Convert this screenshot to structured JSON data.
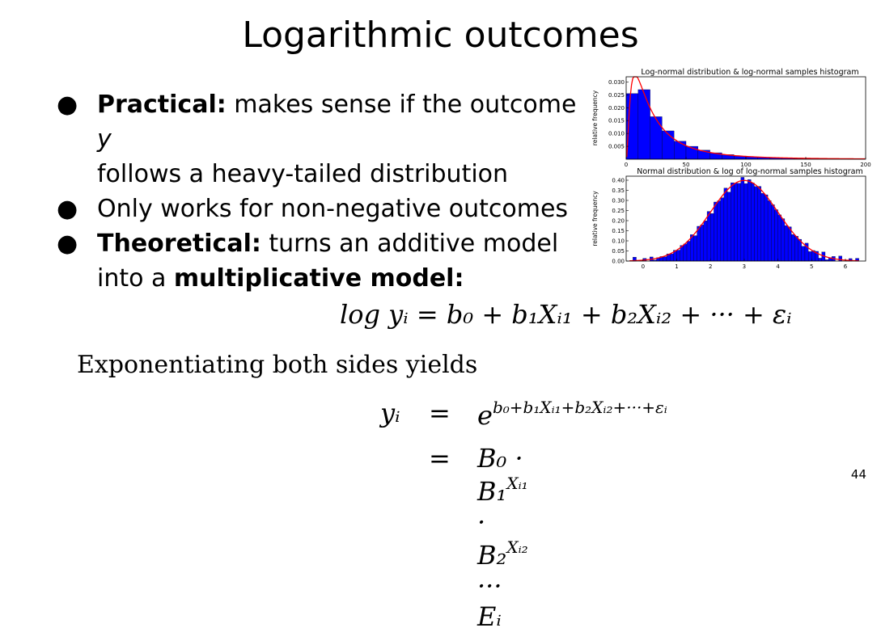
{
  "slide": {
    "title": "Logarithmic outcomes",
    "bullets": [
      {
        "bold": "Practical:",
        "text": " makes sense if the outcome ",
        "var": "y",
        "line2": "follows a heavy-tailed distribution"
      },
      {
        "bold": "",
        "text": "Only works for non-negative outcomes"
      },
      {
        "bold": "Theoretical:",
        "text": " turns an additive model",
        "line2a": "into a ",
        "line2b": "multiplicative model",
        "line2c": ":"
      }
    ],
    "eq1": "log yᵢ = b₀ + b₁Xᵢ₁ + b₂Xᵢ₂ + ··· + εᵢ",
    "exponentiating": "Exponentiating both sides yields",
    "eq2": {
      "lhs": "yᵢ",
      "eq": "=",
      "rhs1_base": "e",
      "rhs1_exp": "b₀+b₁Xᵢ₁+b₂Xᵢ₂+···+εᵢ",
      "rhs2": "B₀ · B₁",
      "rhs2_exp1": "Xᵢ₁",
      "rhs2_mid": " · B₂",
      "rhs2_exp2": "Xᵢ₂",
      "rhs2_end": " ··· Eᵢ"
    },
    "page_number": "44"
  },
  "chart_data": [
    {
      "type": "bar",
      "title": "Log-normal distribution & log-normal samples histogram",
      "ylabel": "relative frequency",
      "xlabel": "",
      "xlim": [
        0,
        200
      ],
      "ylim": [
        0,
        0.032
      ],
      "xticks": [
        "0",
        "50",
        "100",
        "150",
        "200"
      ],
      "yticks": [
        "0.005",
        "0.010",
        "0.015",
        "0.020",
        "0.025",
        "0.030"
      ],
      "bin_width": 10,
      "values": [
        0.0255,
        0.027,
        0.0165,
        0.011,
        0.007,
        0.005,
        0.0035,
        0.0025,
        0.0018,
        0.0012,
        0.0009,
        0.0007,
        0.0005,
        0.0004,
        0.0003,
        0.0002,
        0.0002,
        0.0001,
        0.0001,
        0.0001
      ],
      "curve_color": "#ff0000",
      "bar_color": "#0000ff"
    },
    {
      "type": "bar",
      "title": "Normal distribution & log of log-normal samples histogram",
      "ylabel": "relative frequency",
      "xlabel": "",
      "xlim": [
        -0.5,
        6.6
      ],
      "ylim": [
        0,
        0.42
      ],
      "xticks": [
        "0",
        "1",
        "2",
        "3",
        "4",
        "5",
        "6"
      ],
      "yticks": [
        "0.00",
        "0.05",
        "0.10",
        "0.15",
        "0.20",
        "0.25",
        "0.30",
        "0.35",
        "0.40"
      ],
      "mean": 3,
      "sd": 1,
      "bin_width": 0.1,
      "curve_color": "#ff0000",
      "bar_color": "#0000ff"
    }
  ]
}
